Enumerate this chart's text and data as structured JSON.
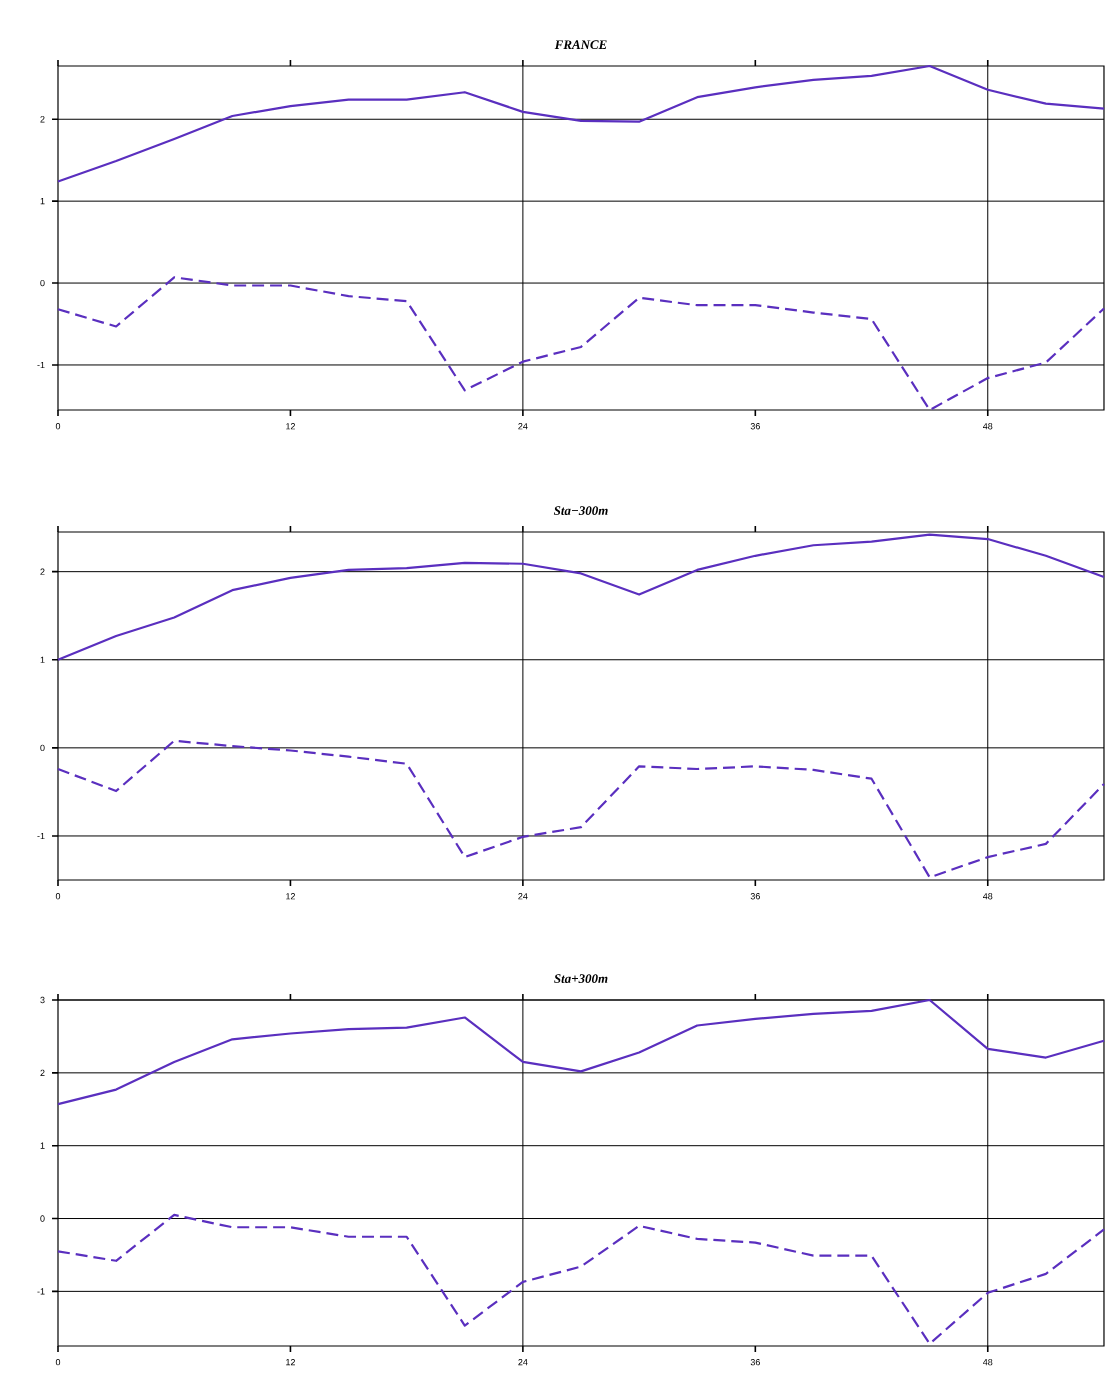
{
  "chart_data": [
    {
      "type": "line",
      "title": "FRANCE",
      "x": [
        0,
        3,
        6,
        9,
        12,
        15,
        18,
        21,
        24,
        27,
        30,
        33,
        36,
        39,
        42,
        45,
        48,
        51,
        54
      ],
      "xlim": [
        0,
        54
      ],
      "ylim": [
        -1.55,
        2.65
      ],
      "xticks": [
        0,
        12,
        24,
        36,
        48
      ],
      "yticks": [
        -1,
        0,
        1,
        2
      ],
      "grid": "y",
      "series": [
        {
          "color": "#5a2fbf",
          "line_style": "solid",
          "values": [
            1.24,
            1.49,
            1.76,
            2.04,
            2.16,
            2.24,
            2.24,
            2.33,
            2.09,
            1.98,
            1.97,
            2.27,
            2.39,
            2.48,
            2.53,
            2.65,
            2.36,
            2.19,
            2.13
          ]
        },
        {
          "color": "#5a2fbf",
          "line_style": "dashed",
          "values": [
            -0.32,
            -0.53,
            0.07,
            -0.03,
            -0.03,
            -0.16,
            -0.22,
            -1.31,
            -0.96,
            -0.78,
            -0.18,
            -0.27,
            -0.27,
            -0.36,
            -0.44,
            -1.55,
            -1.16,
            -0.97,
            -0.31
          ]
        }
      ],
      "ref_lines": [
        {
          "axis": "x",
          "value": 24
        },
        {
          "axis": "x",
          "value": 48
        }
      ]
    },
    {
      "type": "line",
      "title": "Sta−300m",
      "x": [
        0,
        3,
        6,
        9,
        12,
        15,
        18,
        21,
        24,
        27,
        30,
        33,
        36,
        39,
        42,
        45,
        48,
        51,
        54
      ],
      "xlim": [
        0,
        54
      ],
      "ylim": [
        -1.5,
        2.45
      ],
      "xticks": [
        0,
        12,
        24,
        36,
        48
      ],
      "yticks": [
        -1,
        0,
        1,
        2
      ],
      "grid": "y",
      "series": [
        {
          "color": "#5a2fbf",
          "line_style": "solid",
          "values": [
            1.0,
            1.27,
            1.48,
            1.79,
            1.93,
            2.02,
            2.04,
            2.1,
            2.09,
            1.98,
            1.74,
            2.02,
            2.18,
            2.3,
            2.34,
            2.42,
            2.37,
            2.18,
            1.94
          ]
        },
        {
          "color": "#5a2fbf",
          "line_style": "dashed",
          "values": [
            -0.24,
            -0.49,
            0.08,
            0.02,
            -0.03,
            -0.1,
            -0.18,
            -1.24,
            -1.01,
            -0.9,
            -0.21,
            -0.24,
            -0.21,
            -0.25,
            -0.35,
            -1.47,
            -1.24,
            -1.09,
            -0.41
          ]
        }
      ],
      "ref_lines": [
        {
          "axis": "x",
          "value": 24
        },
        {
          "axis": "x",
          "value": 48
        }
      ]
    },
    {
      "type": "line",
      "title": "Sta+300m",
      "x": [
        0,
        3,
        6,
        9,
        12,
        15,
        18,
        21,
        24,
        27,
        30,
        33,
        36,
        39,
        42,
        45,
        48,
        51,
        54
      ],
      "xlim": [
        0,
        54
      ],
      "ylim": [
        -1.75,
        3
      ],
      "xticks": [
        0,
        12,
        24,
        36,
        48
      ],
      "yticks": [
        -1,
        0,
        1,
        2,
        3
      ],
      "grid": "y",
      "series": [
        {
          "color": "#5a2fbf",
          "line_style": "solid",
          "values": [
            1.57,
            1.77,
            2.15,
            2.46,
            2.54,
            2.6,
            2.62,
            2.76,
            2.15,
            2.02,
            2.28,
            2.65,
            2.74,
            2.81,
            2.85,
            3.0,
            2.33,
            2.21,
            2.44
          ]
        },
        {
          "color": "#5a2fbf",
          "line_style": "dashed",
          "values": [
            -0.45,
            -0.58,
            0.05,
            -0.12,
            -0.12,
            -0.25,
            -0.25,
            -1.47,
            -0.87,
            -0.66,
            -0.1,
            -0.28,
            -0.33,
            -0.51,
            -0.51,
            -1.72,
            -1.02,
            -0.76,
            -0.15
          ]
        }
      ],
      "ref_lines": [
        {
          "axis": "x",
          "value": 24
        },
        {
          "axis": "x",
          "value": 48
        }
      ]
    }
  ]
}
